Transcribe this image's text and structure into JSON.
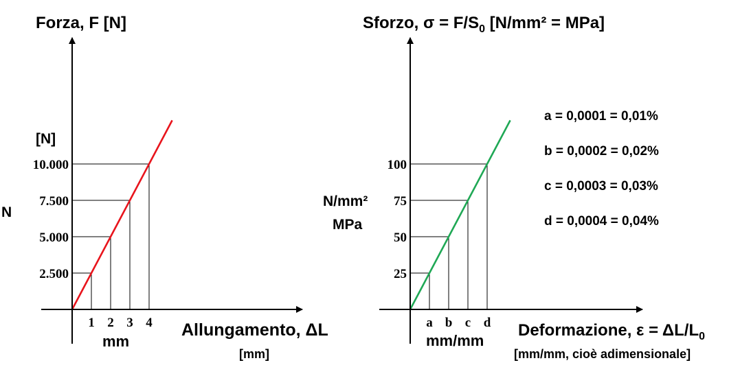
{
  "chart_data": [
    {
      "type": "line",
      "title": "Forza, F [N]",
      "xlabel": "Allungamento, ΔL",
      "xunit": "[mm]",
      "xunit_short": "mm",
      "ylabel": "N",
      "yunit": "[N]",
      "x_ticks": [
        "1",
        "2",
        "3",
        "4"
      ],
      "y_ticks": [
        "2.500",
        "5.000",
        "7.500",
        "10.000"
      ],
      "series": [
        {
          "color": "#e8141c",
          "x": [
            0,
            1,
            2,
            3,
            4,
            5.2
          ],
          "y": [
            0,
            2500,
            5000,
            7500,
            10000,
            13000
          ]
        }
      ],
      "points": [
        {
          "x": 1,
          "y": 2500
        },
        {
          "x": 2,
          "y": 5000
        },
        {
          "x": 3,
          "y": 7500
        },
        {
          "x": 4,
          "y": 10000
        }
      ],
      "xlim": [
        0,
        12
      ],
      "ylim": [
        0,
        19000
      ],
      "grid": false
    },
    {
      "type": "line",
      "title": "Sforzo, σ = F/S",
      "title_sub": "0",
      "title_tail": " [N/mm² = MPa]",
      "xlabel": "Deformazione, ε = ΔL/L",
      "xlabel_sub": "0",
      "xunit": "[mm/mm, cioè adimensionale]",
      "xunit_short": "mm/mm",
      "ylabel": "N/mm²",
      "ylabel2": "MPa",
      "x_ticks": [
        "a",
        "b",
        "c",
        "d"
      ],
      "y_ticks": [
        "25",
        "50",
        "75",
        "100"
      ],
      "series": [
        {
          "color": "#1fa855",
          "x": [
            0,
            1,
            2,
            3,
            4,
            5.2
          ],
          "y": [
            0,
            25,
            50,
            75,
            100,
            130
          ]
        }
      ],
      "points": [
        {
          "x": 1,
          "y": 25
        },
        {
          "x": 2,
          "y": 50
        },
        {
          "x": 3,
          "y": 75
        },
        {
          "x": 4,
          "y": 100
        }
      ],
      "xlim": [
        0,
        12
      ],
      "ylim": [
        0,
        190
      ],
      "grid": false,
      "annotations": [
        "a = 0,0001 = 0,01%",
        "b = 0,0002 = 0,02%",
        "c = 0,0003 = 0,03%",
        "d = 0,0004 = 0,04%"
      ]
    }
  ]
}
